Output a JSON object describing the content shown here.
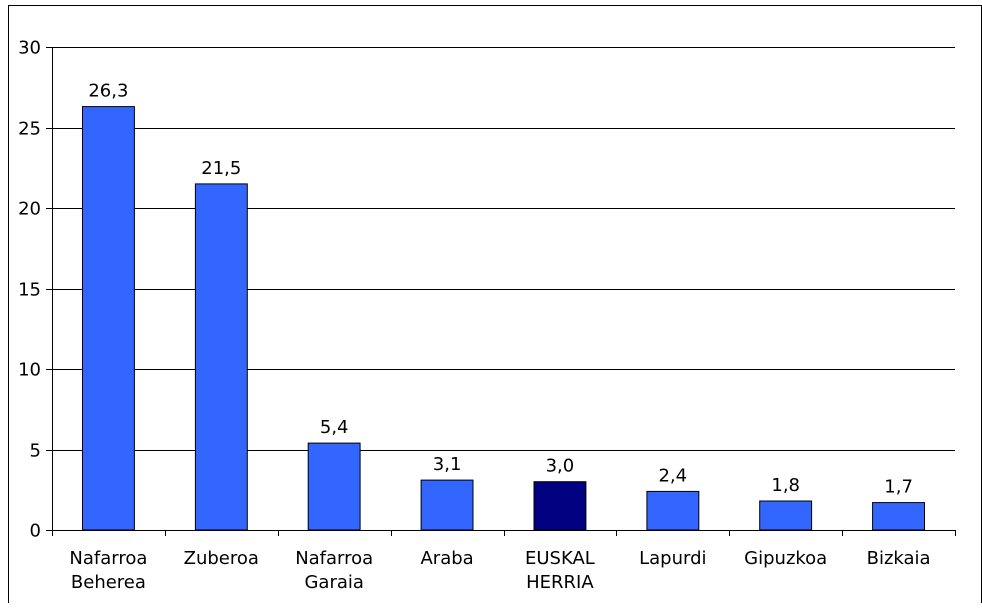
{
  "chart_data": {
    "type": "bar",
    "categories": [
      [
        "Nafarroa",
        "Beherea"
      ],
      [
        "Zuberoa"
      ],
      [
        "Nafarroa",
        "Garaia"
      ],
      [
        "Araba"
      ],
      [
        "EUSKAL",
        "HERRIA"
      ],
      [
        "Lapurdi"
      ],
      [
        "Gipuzkoa"
      ],
      [
        "Bizkaia"
      ]
    ],
    "values": [
      26.3,
      21.5,
      5.4,
      3.1,
      3.0,
      2.4,
      1.8,
      1.7
    ],
    "data_labels": [
      "26,3",
      "21,5",
      "5,4",
      "3,1",
      "3,0",
      "2,4",
      "1,8",
      "1,7"
    ],
    "highlight_index": 4,
    "ylim": [
      0,
      30
    ],
    "yticks": [
      0,
      5,
      10,
      15,
      20,
      25,
      30
    ],
    "ytick_labels": [
      "0",
      "5",
      "10",
      "15",
      "20",
      "25",
      "30"
    ],
    "grid": true,
    "legend": "none",
    "colors": {
      "bar": "#3366ff",
      "highlight_bar": "#000080",
      "bar_edge": "#000000",
      "grid": "#000000",
      "frame": "#000000"
    }
  }
}
